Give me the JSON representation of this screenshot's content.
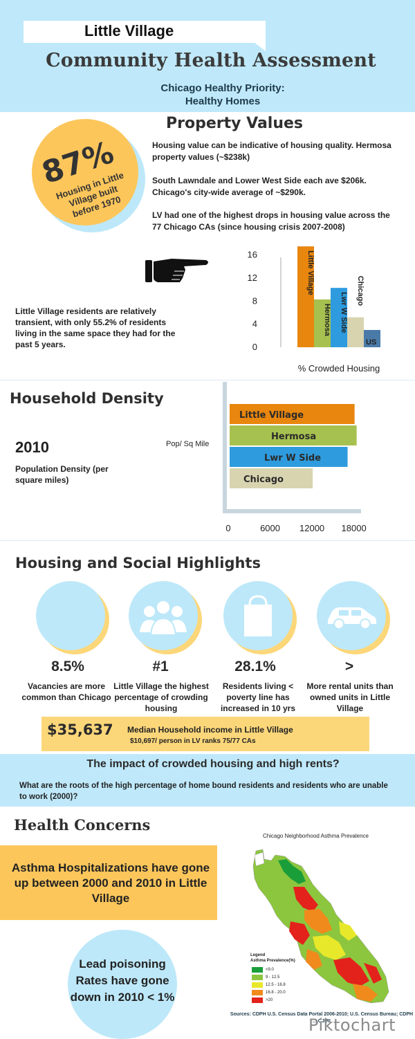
{
  "header": {
    "subtitle_top": "Little Village",
    "title": "Community Health Assessment",
    "priority_line1": "Chicago Healthy Priority:",
    "priority_line2": "Healthy Homes"
  },
  "property_values": {
    "title": "Property Values",
    "stat_value": "87%",
    "stat_label": "Housing in Little Village built before 1970",
    "paragraph1": "Housing value can be indicative of housing quality. Hermosa property values (~$238k)",
    "paragraph2": "South Lawndale and Lower West Side each ave $206k. Chicago's city-wide average of ~$290k.",
    "paragraph3": "LV had one of the highest drops in housing value across the 77 Chicago CAs (since housing crisis 2007-2008)",
    "transient_text": "Little Village residents are relatively transient, with only 55.2% of residents living in the same space they had for the past 5 years."
  },
  "household_density": {
    "title": "Household Density",
    "year": "2010",
    "label": "Population Density (per square miles)",
    "unit_label": "Pop/ Sq Mile"
  },
  "highlights": {
    "title": "Housing and Social Highlights",
    "items": [
      {
        "stat": "8.5%",
        "desc": "Vacancies are more common than Chicago",
        "icon": "blank-icon"
      },
      {
        "stat": "#1",
        "desc": "Little Village the highest percentage of crowding housing",
        "icon": "people-icon"
      },
      {
        "stat": "28.1%",
        "desc": "Residents living < poverty line has increased in 10 yrs",
        "icon": "shopping-bag-icon"
      },
      {
        "stat": ">",
        "desc": "More rental units than owned units in Little Village",
        "icon": "car-icon"
      }
    ],
    "income_value": "$35,637",
    "income_title": "Median  Household income in Little Village",
    "income_sub": "$10,697/ person in LV ranks 75/77 CAs"
  },
  "impact": {
    "title": "The impact of crowded housing and high rents?",
    "question": "What are the roots of the high percentage of home bound residents and residents who are unable to work (2000)?"
  },
  "health": {
    "title": "Health Concerns",
    "asthma_text": "Asthma Hospitalizations have gone up between 2000 and 2010 in Little Village",
    "lead_text": "Lead poisoning Rates have gone down in  2010 < 1%",
    "map_title": "Chicago Neighborhood Asthma Prevalence",
    "legend_title": "Legend",
    "legend_sub": "Asthma Prevalence(%)",
    "legend": [
      {
        "label": "<9.0",
        "color": "#1a9e3a"
      },
      {
        "label": "9 - 12.5",
        "color": "#8cc63e"
      },
      {
        "label": "12.5 - 16.8",
        "color": "#e8e82a"
      },
      {
        "label": "16.8 - 20.0",
        "color": "#f08a1c"
      },
      {
        "label": ">20",
        "color": "#e3221c"
      }
    ],
    "sources": "Sources: CDPH  U.S. Census Data Portal 2006-2010; U.S. Census Bureau; CDPH ... CJIRI",
    "brand": "Piktochart"
  },
  "colors": {
    "light_blue": "#bfe9fa",
    "yellow": "#fcc65b",
    "orange_bar": "#e8860e",
    "green_bar": "#a7c150",
    "blue_bar": "#2e9bde",
    "beige_bar": "#d8d4b0",
    "us_bar": "#4a7aa8"
  },
  "chart_data": [
    {
      "type": "bar",
      "title": "",
      "xlabel": "% Crowded Housing",
      "ylabel": "",
      "categories": [
        "Little Village",
        "Hermosa",
        "Lwr W Side",
        "Chicago",
        "US"
      ],
      "values": [
        17.5,
        8.3,
        10.3,
        5.2,
        3.0
      ],
      "ylim": [
        0,
        18
      ],
      "yticks": [
        "0",
        "4",
        "8",
        "12",
        "16"
      ],
      "grid": false
    },
    {
      "type": "bar",
      "orientation": "horizontal",
      "title": "",
      "xlabel": "",
      "ylabel": "Pop/ Sq Mile",
      "categories": [
        "Little Village",
        "Hermosa",
        "Lwr W Side",
        "Chicago"
      ],
      "values": [
        17900,
        18200,
        16900,
        11900
      ],
      "xlim": [
        0,
        20000
      ],
      "xticks": [
        "0",
        "6000",
        "12000",
        "18000"
      ],
      "grid": false
    }
  ]
}
